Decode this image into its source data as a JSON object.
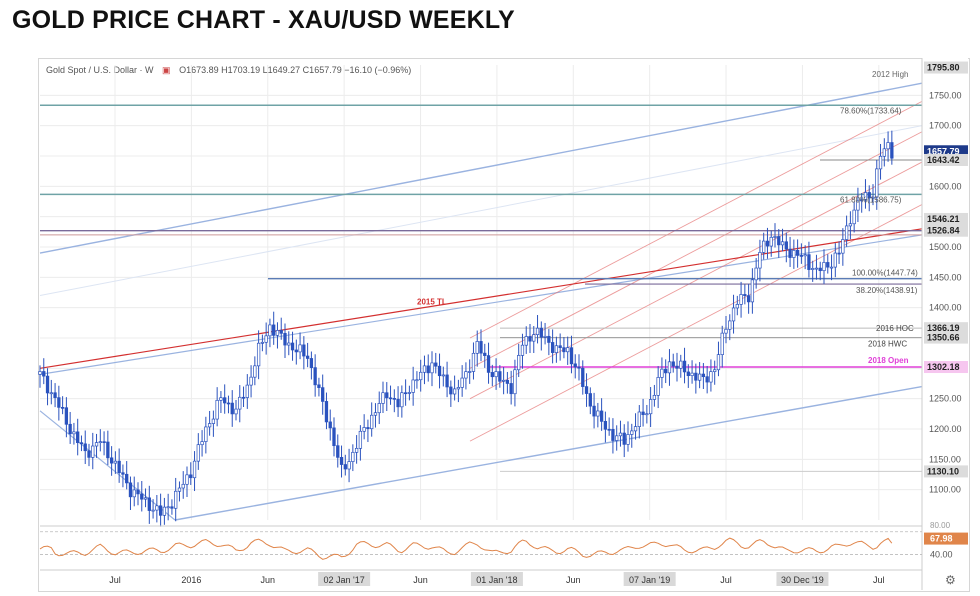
{
  "page": {
    "title": "GOLD PRICE CHART - XAU/USD WEEKLY"
  },
  "legend": {
    "symbol": "Gold Spot / U.S. Dollar · W",
    "ohlc": "O1673.89  H1703.19  L1649.27  C1657.79  −16.10 (−0.96%)"
  },
  "colors": {
    "candle_up": "#2a52be",
    "candle_down": "#2a52be",
    "channel_blue": "#9ab3e0",
    "channel_red": "#e57373",
    "trendline_red": "#d32f2f",
    "fib_line": "#6fa3a6",
    "magenta": "#e040d8",
    "rsi": "#e0854a",
    "grid": "#ececec"
  },
  "chart_data": {
    "type": "candlestick",
    "title": "GOLD PRICE CHART - XAU/USD WEEKLY",
    "price_axis": {
      "min": 1050,
      "max": 1800,
      "ticks": [
        1100,
        1150,
        1200,
        1250,
        1300,
        1350,
        1400,
        1450,
        1500,
        1550,
        1600,
        1650,
        1700,
        1750
      ]
    },
    "x_ticks": [
      "Jul",
      "2016",
      "Jun",
      "02 Jan '17",
      "Jun",
      "01 Jan '18",
      "Jun",
      "07 Jan '19",
      "Jul",
      "30 Dec '19",
      "Jul"
    ],
    "x_ticks_boxed": [
      "02 Jan '17",
      "01 Jan '18",
      "07 Jan '19",
      "30 Dec '19"
    ],
    "price_path": [
      [
        0,
        1290
      ],
      [
        4,
        1250
      ],
      [
        8,
        1200
      ],
      [
        12,
        1160
      ],
      [
        16,
        1180
      ],
      [
        20,
        1140
      ],
      [
        24,
        1100
      ],
      [
        28,
        1080
      ],
      [
        32,
        1060
      ],
      [
        35,
        1080
      ],
      [
        40,
        1130
      ],
      [
        44,
        1200
      ],
      [
        48,
        1250
      ],
      [
        52,
        1230
      ],
      [
        55,
        1270
      ],
      [
        58,
        1330
      ],
      [
        61,
        1370
      ],
      [
        64,
        1350
      ],
      [
        68,
        1330
      ],
      [
        71,
        1320
      ],
      [
        74,
        1260
      ],
      [
        77,
        1200
      ],
      [
        80,
        1130
      ],
      [
        83,
        1160
      ],
      [
        86,
        1200
      ],
      [
        89,
        1230
      ],
      [
        92,
        1260
      ],
      [
        95,
        1240
      ],
      [
        98,
        1270
      ],
      [
        101,
        1290
      ],
      [
        104,
        1310
      ],
      [
        107,
        1280
      ],
      [
        110,
        1260
      ],
      [
        113,
        1290
      ],
      [
        116,
        1340
      ],
      [
        119,
        1300
      ],
      [
        122,
        1280
      ],
      [
        125,
        1270
      ],
      [
        128,
        1340
      ],
      [
        131,
        1360
      ],
      [
        134,
        1350
      ],
      [
        137,
        1330
      ],
      [
        140,
        1330
      ],
      [
        143,
        1290
      ],
      [
        146,
        1240
      ],
      [
        149,
        1210
      ],
      [
        152,
        1190
      ],
      [
        155,
        1180
      ],
      [
        158,
        1210
      ],
      [
        161,
        1230
      ],
      [
        164,
        1280
      ],
      [
        167,
        1310
      ],
      [
        170,
        1300
      ],
      [
        173,
        1290
      ],
      [
        176,
        1280
      ],
      [
        179,
        1300
      ],
      [
        182,
        1370
      ],
      [
        185,
        1410
      ],
      [
        188,
        1420
      ],
      [
        191,
        1490
      ],
      [
        194,
        1520
      ],
      [
        197,
        1500
      ],
      [
        200,
        1490
      ],
      [
        203,
        1480
      ],
      [
        206,
        1460
      ],
      [
        209,
        1470
      ],
      [
        212,
        1490
      ],
      [
        215,
        1550
      ],
      [
        218,
        1580
      ],
      [
        221,
        1590
      ],
      [
        223,
        1650
      ],
      [
        225,
        1670
      ],
      [
        226,
        1658
      ]
    ],
    "last_index": 226,
    "horizontal_levels": [
      {
        "label": "1795.80",
        "value": 1795.8
      },
      {
        "label": "1657.79",
        "value": 1657.79,
        "highlight": true
      },
      {
        "label": "1643.42",
        "value": 1643.42
      },
      {
        "label": "1546.21",
        "value": 1546.21
      },
      {
        "label": "1526.84",
        "value": 1526.84
      },
      {
        "label": "1366.19",
        "value": 1366.19
      },
      {
        "label": "1350.66",
        "value": 1350.66
      },
      {
        "label": "1302.18",
        "value": 1302.18,
        "magenta": true
      },
      {
        "label": "1130.10",
        "value": 1130.1
      }
    ],
    "annotations": [
      {
        "text": "2012 High",
        "kind": "gray"
      },
      {
        "text": "78.60%(1733.64)",
        "kind": "fib"
      },
      {
        "text": "61.80%(1586.75)",
        "kind": "fib"
      },
      {
        "text": "100.00%(1447.74)",
        "kind": "fib"
      },
      {
        "text": "38.20%(1438.91)",
        "kind": "fib"
      },
      {
        "text": "2016 HOC",
        "kind": "gray"
      },
      {
        "text": "2018 HWC",
        "kind": "gray"
      },
      {
        "text": "2018 Open",
        "kind": "magenta"
      },
      {
        "text": "2015 TL",
        "kind": "red"
      }
    ],
    "rsi": {
      "label": "67.98",
      "value": 67.98,
      "axis_label": "40.00",
      "axis_value": 40,
      "top_label": "80.00"
    }
  }
}
